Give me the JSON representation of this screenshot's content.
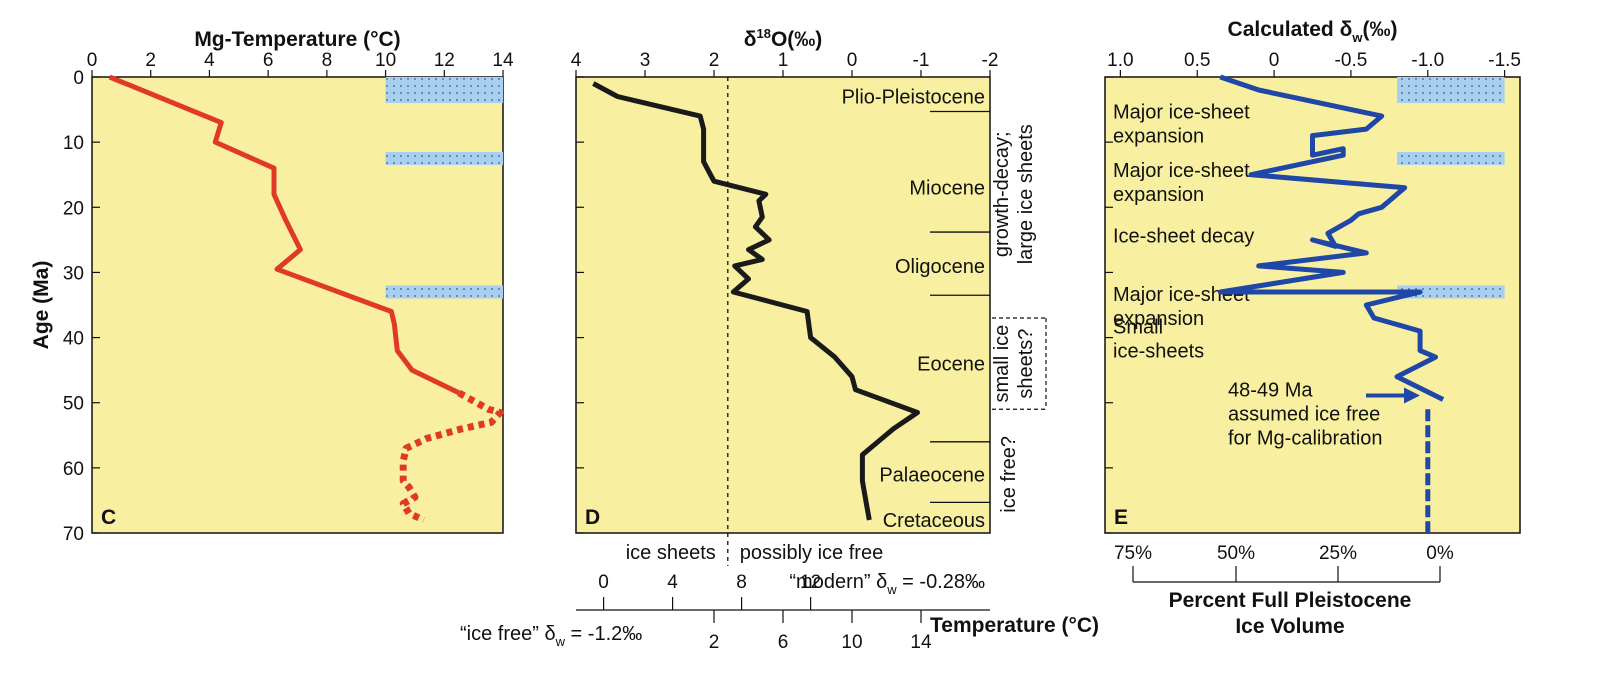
{
  "colors": {
    "panel_background": "#f8f0a0",
    "mg_temperature_line": "#e03a26",
    "d18o_line": "#1a1a1a",
    "delta_w_line": "#1f47a8",
    "ice_bar_fill": "#a9cfee",
    "ice_bar_dots": "#2a5f9e"
  },
  "chart_data": [
    {
      "type": "line",
      "panel_label": "C",
      "title": "Mg-Temperature (°C)",
      "xlabel": "",
      "ylabel": "Age (Ma)",
      "x_ticks": [
        "0",
        "2",
        "4",
        "6",
        "8",
        "10",
        "12",
        "14"
      ],
      "y_ticks": [
        "0",
        "10",
        "20",
        "30",
        "40",
        "50",
        "60",
        "70"
      ],
      "xlim": [
        0,
        14
      ],
      "ylim": [
        70,
        0
      ],
      "y_inverted": true,
      "x_axis_position": "top",
      "series": [
        {
          "style": "solid",
          "x": [
            0.6,
            4.4,
            4.2,
            6.2,
            6.2,
            6.6,
            7.1,
            6.3,
            10.2,
            10.3,
            10.4,
            10.9,
            12.5
          ],
          "y": [
            0,
            7,
            10,
            14,
            18,
            22,
            26.5,
            29.5,
            36,
            38,
            42,
            45,
            48.5
          ]
        },
        {
          "style": "dotted",
          "x": [
            12.5,
            13.1,
            13.5,
            13.9,
            13.6,
            12.6,
            11.4,
            10.7,
            10.6,
            10.6,
            10.8,
            11.0,
            10.6,
            10.8,
            11.3
          ],
          "y": [
            48.5,
            50,
            51,
            51.5,
            53,
            54,
            55.5,
            57,
            59,
            62,
            63,
            64.5,
            65.5,
            67,
            68
          ]
        }
      ],
      "ice_bars_age_ranges": [
        [
          0,
          4
        ],
        [
          11.5,
          13.5
        ],
        [
          32,
          34
        ]
      ],
      "ice_bars_x_range": [
        10,
        14
      ]
    },
    {
      "type": "line",
      "panel_label": "D",
      "title": "δ18O(‰)",
      "title_main": "δ",
      "title_sup": "18",
      "title_rest": "O(‰)",
      "x_ticks": [
        "4",
        "3",
        "2",
        "1",
        "0",
        "-1",
        "-2"
      ],
      "xlim": [
        4,
        -2
      ],
      "ylim": [
        70,
        0
      ],
      "y_inverted": true,
      "x_axis_position": "top",
      "threshold_x": 1.8,
      "threshold_labels": {
        "left": "ice sheets",
        "right": "possibly ice free"
      },
      "series": [
        {
          "style": "solid",
          "x": [
            3.75,
            3.4,
            2.2,
            2.15,
            2.15,
            2.15,
            2.05,
            2.0,
            1.25,
            1.35,
            1.3,
            1.4,
            1.2,
            1.5,
            1.3,
            1.7,
            1.5,
            1.72,
            0.65,
            0.6,
            0.25,
            0.0,
            -0.05,
            -0.95,
            -0.6,
            -0.15,
            -0.15,
            -0.2,
            -0.25
          ],
          "y": [
            1,
            3,
            6,
            8,
            11,
            13,
            15,
            16,
            18,
            19,
            21.5,
            23,
            25,
            26.5,
            28,
            29,
            31,
            33,
            36,
            40,
            43,
            46,
            48,
            51.5,
            54,
            58,
            62,
            65,
            68
          ]
        }
      ],
      "epochs": [
        {
          "name": "Plio-Pleistocene",
          "age": 3,
          "boundary": 5.3
        },
        {
          "name": "Miocene",
          "age": 17,
          "boundary": 23.8
        },
        {
          "name": "Oligocene",
          "age": 29,
          "boundary": 33.5
        },
        {
          "name": "Eocene",
          "age": 44,
          "boundary": 56
        },
        {
          "name": "Palaeocene",
          "age": 61,
          "boundary": 65.3
        },
        {
          "name": "Cretaceous",
          "age": 68
        }
      ],
      "side_labels": [
        {
          "lines": [
            "growth-decay;",
            "large ice sheets"
          ],
          "age_center": 18
        },
        {
          "lines": [
            "small ice",
            "sheets?"
          ],
          "age_center": 44,
          "bracket": [
            37,
            51
          ]
        },
        {
          "lines": [
            "ice free?"
          ],
          "age_center": 61
        }
      ],
      "temperature_scales": {
        "modern": {
          "label": "“modern” δ",
          "sub": "w",
          "value": " = -0.28‰",
          "ticks": [
            "0",
            "4",
            "8",
            "12"
          ],
          "d18o_at": [
            3.6,
            2.6,
            1.6,
            0.6
          ]
        },
        "ice_free": {
          "label": "“ice free” δ",
          "sub": "w",
          "value": " = -1.2‰",
          "ticks": [
            "2",
            "6",
            "10",
            "14"
          ],
          "d18o_at": [
            2.0,
            1.0,
            0.0,
            -1.0
          ]
        },
        "axis_label": "Temperature (°C)"
      }
    },
    {
      "type": "line",
      "panel_label": "E",
      "title_main": "Calculated δ",
      "title_sub": "w",
      "title_rest": "(‰)",
      "x_ticks": [
        "1.0",
        "0.5",
        "0",
        "-0.5",
        "-1.0",
        "-1.5"
      ],
      "xlim": [
        1.1,
        -1.6
      ],
      "ylim": [
        70,
        0
      ],
      "y_inverted": true,
      "x_axis_position": "top",
      "series": [
        {
          "style": "solid",
          "x": [
            0.35,
            0.1,
            -0.7,
            -0.6,
            -0.25,
            -0.25,
            -0.45,
            -0.45,
            0.15,
            -0.85,
            -0.7,
            -0.55,
            -0.5,
            -0.35,
            -0.4,
            -0.25,
            -0.6,
            0.1,
            -0.45,
            0.35,
            -0.95,
            -0.6,
            -0.65,
            -0.95,
            -0.95,
            -1.05,
            -0.8,
            -1.1
          ],
          "y": [
            0,
            2,
            6,
            8,
            9,
            12,
            11,
            12,
            15,
            17,
            20,
            21,
            22,
            24,
            26,
            25,
            27,
            29,
            30,
            33,
            33,
            35,
            37,
            39,
            42,
            43,
            46,
            49.5
          ]
        },
        {
          "style": "dashed",
          "x": [
            -1.0,
            -1.0,
            -1.0,
            -1.0,
            -1.0
          ],
          "y": [
            51,
            55,
            60,
            65,
            70
          ]
        }
      ],
      "ice_bars_age_ranges": [
        [
          0,
          4
        ],
        [
          11.5,
          13.5
        ],
        [
          32,
          34
        ]
      ],
      "ice_bars_x_range": [
        -0.8,
        -1.5
      ],
      "annotations": [
        {
          "lines": [
            "Major ice-sheet",
            "expansion"
          ],
          "age": 7
        },
        {
          "lines": [
            "Major ice-sheet",
            "expansion"
          ],
          "age": 16
        },
        {
          "lines": [
            "Ice-sheet decay"
          ],
          "age": 26
        },
        {
          "lines": [
            "Major ice-sheet",
            "expansion"
          ],
          "age": 35
        },
        {
          "lines": [
            "Small",
            "ice-sheets"
          ],
          "age": 40
        },
        {
          "lines": [
            "48-49 Ma",
            "assumed ice free",
            "for Mg-calibration"
          ],
          "age": 50
        }
      ],
      "bottom_axis": {
        "label_lines": [
          "Percent Full Pleistocene",
          "Ice Volume"
        ],
        "ticks": [
          "75%",
          "50%",
          "25%",
          "0%"
        ]
      }
    }
  ]
}
